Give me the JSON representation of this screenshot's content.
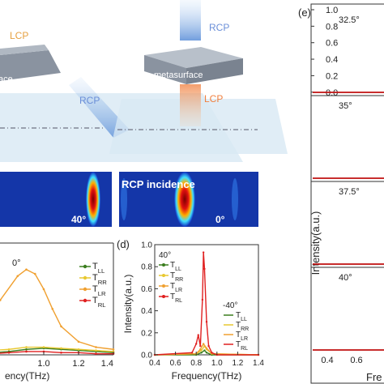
{
  "schematic": {
    "left_incident": "LCP",
    "left_label": "ace",
    "left_reflected": "RCP",
    "right_incident": "RCP",
    "right_surface": "metasurface",
    "right_transmitted": "LCP"
  },
  "field_maps": {
    "left_angle": "40°",
    "right_angle": "0°",
    "right_title": "RCP incidence"
  },
  "panel_c": {
    "angle": "0°",
    "legend": [
      "T_LL",
      "T_RR",
      "T_LR",
      "T_RL"
    ],
    "x_axis_label": "ency(THz)"
  },
  "panel_d": {
    "label": "(d)",
    "pos_angle": "40°",
    "neg_angle": "-40°",
    "legend_pos": [
      "T_LL",
      "T_RR",
      "T_LR",
      "T_RL"
    ],
    "legend_neg": [
      "T_LL",
      "T_RR",
      "T_LR",
      "T_RL"
    ],
    "y_axis_label": "Intensity(a.u.)",
    "x_axis_label": "Frequency(THz)"
  },
  "panel_e": {
    "label": "(e)",
    "y_axis_label": "Intensity(a.u.)",
    "x_axis_label": "Fre",
    "angles": [
      "32.5°",
      "35°",
      "37.5°",
      "40°"
    ],
    "y_tick_labels": [
      "1.0",
      "0.8",
      "0.6",
      "0.4",
      "0.2",
      "0.0"
    ],
    "x_tick_labels": [
      "0.4",
      "0.6"
    ]
  },
  "chart_data": [
    {
      "type": "line",
      "panel": "c",
      "xlim": [
        0.4,
        1.4
      ],
      "x_tick_labels": [
        "1.0",
        "1.2",
        "1.4"
      ],
      "series": [
        {
          "name": "T_LL",
          "color": "#3a7d1e",
          "x": [
            0.55,
            0.7,
            0.8,
            0.9,
            1.0,
            1.1,
            1.2,
            1.3,
            1.4
          ],
          "y": [
            0.03,
            0.02,
            0.03,
            0.05,
            0.06,
            0.05,
            0.04,
            0.03,
            0.02
          ]
        },
        {
          "name": "T_RR",
          "color": "#e8c830",
          "x": [
            0.55,
            0.7,
            0.8,
            0.9,
            1.0,
            1.1,
            1.2,
            1.3,
            1.4
          ],
          "y": [
            0.05,
            0.04,
            0.05,
            0.07,
            0.07,
            0.06,
            0.05,
            0.04,
            0.03
          ]
        },
        {
          "name": "T_LR",
          "color": "#f0a030",
          "x": [
            0.55,
            0.65,
            0.75,
            0.85,
            0.9,
            0.95,
            1.0,
            1.05,
            1.1,
            1.2,
            1.3,
            1.4
          ],
          "y": [
            0.12,
            0.28,
            0.5,
            0.72,
            0.78,
            0.74,
            0.6,
            0.42,
            0.26,
            0.12,
            0.07,
            0.05
          ]
        },
        {
          "name": "T_RL",
          "color": "#e02020",
          "x": [
            0.55,
            0.7,
            0.8,
            0.9,
            1.0,
            1.1,
            1.2,
            1.3,
            1.4
          ],
          "y": [
            0.02,
            0.01,
            0.02,
            0.03,
            0.03,
            0.02,
            0.02,
            0.01,
            0.01
          ]
        }
      ]
    },
    {
      "type": "line",
      "panel": "d",
      "xlim": [
        0.4,
        1.4
      ],
      "ylim": [
        0.0,
        1.0
      ],
      "x_tick_labels": [
        "0.4",
        "0.6",
        "0.8",
        "1.0",
        "1.2",
        "1.4"
      ],
      "y_tick_labels": [
        "0.0",
        "0.2",
        "0.4",
        "0.6",
        "0.8",
        "1.0"
      ],
      "series": [
        {
          "name": "T_LL",
          "color": "#3a7d1e",
          "x": [
            0.4,
            0.8,
            0.85,
            0.88,
            0.9,
            0.95,
            1.4
          ],
          "y": [
            0.0,
            0.0,
            0.02,
            0.04,
            0.02,
            0.0,
            0.0
          ]
        },
        {
          "name": "T_RR",
          "color": "#e8c830",
          "x": [
            0.4,
            0.8,
            0.85,
            0.88,
            0.9,
            0.95,
            1.4
          ],
          "y": [
            0.0,
            0.01,
            0.04,
            0.08,
            0.05,
            0.01,
            0.0
          ]
        },
        {
          "name": "T_LR",
          "color": "#f0a030",
          "x": [
            0.4,
            0.8,
            0.84,
            0.87,
            0.9,
            0.95,
            1.4
          ],
          "y": [
            0.0,
            0.01,
            0.05,
            0.1,
            0.06,
            0.01,
            0.0
          ]
        },
        {
          "name": "T_RL",
          "color": "#e02020",
          "x": [
            0.4,
            0.76,
            0.8,
            0.82,
            0.84,
            0.86,
            0.87,
            0.88,
            0.9,
            0.92,
            0.95,
            1.0,
            1.4
          ],
          "y": [
            0.0,
            0.02,
            0.1,
            0.18,
            0.08,
            0.5,
            0.93,
            0.78,
            0.3,
            0.08,
            0.02,
            0.0,
            0.0
          ]
        }
      ]
    }
  ]
}
